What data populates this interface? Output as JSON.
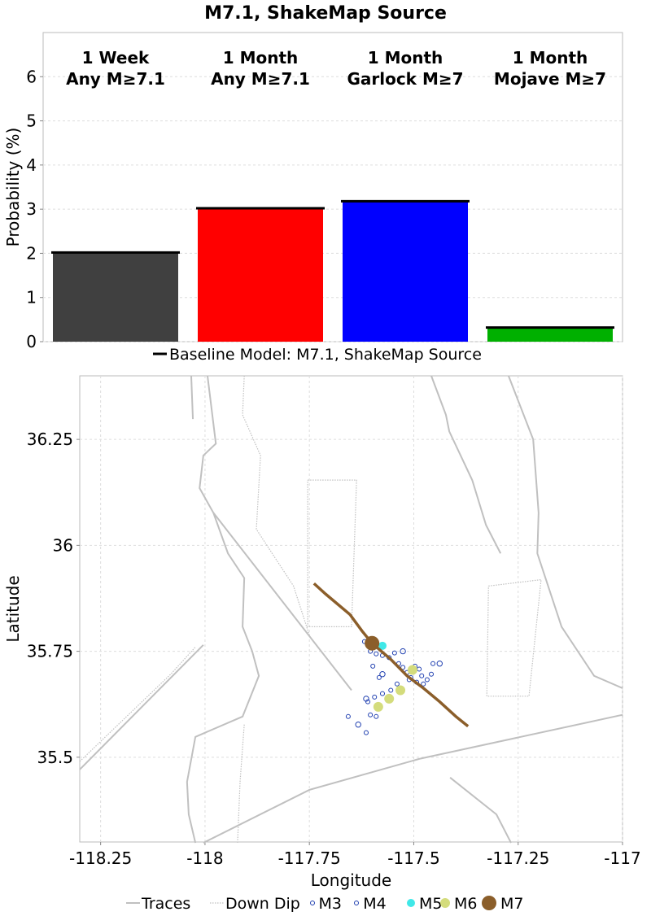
{
  "chart_data": [
    {
      "type": "bar",
      "title": "M7.1, ShakeMap Source",
      "y_label": "Probability (%)",
      "categories": [
        [
          "1 Week",
          "Any M≥7.1"
        ],
        [
          "1 Month",
          "Any M≥7.1"
        ],
        [
          "1 Month",
          "Garlock M≥7"
        ],
        [
          "1 Month",
          "Mojave M≥7"
        ]
      ],
      "values": [
        2.02,
        3.02,
        3.18,
        0.32
      ],
      "colors": [
        "#404040",
        "#ff0000",
        "#0000ff",
        "#00b000"
      ],
      "baseline": {
        "name": "Baseline Model: M7.1, ShakeMap Source",
        "color": "#000000",
        "values": [
          2.02,
          3.02,
          3.18,
          0.32
        ]
      },
      "ylim": [
        0,
        7
      ],
      "yticks": [
        0,
        1,
        2,
        3,
        4,
        5,
        6
      ],
      "grid": true
    },
    {
      "type": "scatter",
      "x_label": "Longitude",
      "y_label": "Latitude",
      "xlim": [
        -118.3,
        -117
      ],
      "ylim": [
        35.3,
        36.4
      ],
      "xticks": [
        -118.25,
        -118,
        -117.75,
        -117.5,
        -117.25,
        -117
      ],
      "yticks": [
        35.5,
        35.75,
        36,
        36.25
      ],
      "grid": true,
      "series": [
        {
          "name": "Traces",
          "color": "#c0c0c0",
          "style": "line",
          "x": [
            -117.994,
            -117.974,
            -118.004,
            -118.013,
            -117.98,
            -117.945,
            -117.906,
            -117.91,
            -117.887,
            -117.871,
            -117.91,
            -118.023,
            -118.043,
            -118.039,
            -118.023,
            null,
            -118.004,
            -117.75,
            -117.487,
            -117.0,
            null,
            -117.98,
            -117.649,
            null,
            -117.458,
            -117.423,
            -117.415,
            -117.36,
            -117.327,
            -117.292,
            null,
            -117.273,
            -117.214,
            -117.201,
            -117.204,
            -117.146,
            -117.068,
            -117.0,
            null,
            -117.413,
            -117.302,
            -117.267,
            null,
            -118.3,
            -118.004,
            null,
            -118.033,
            -118.029
          ],
          "y": [
            36.4,
            36.24,
            36.212,
            36.135,
            36.077,
            35.981,
            35.923,
            35.808,
            35.75,
            35.692,
            35.596,
            35.548,
            35.442,
            35.365,
            35.298,
            null,
            35.298,
            35.423,
            35.496,
            35.6,
            null,
            36.077,
            35.658,
            null,
            36.4,
            36.308,
            36.269,
            36.154,
            36.048,
            35.981,
            null,
            36.4,
            36.25,
            36.077,
            35.981,
            35.808,
            35.692,
            35.663,
            null,
            35.452,
            35.365,
            35.298,
            null,
            35.471,
            35.765,
            null,
            36.4,
            36.298
          ]
        },
        {
          "name": "Down Dip",
          "color": "#c0c0c0",
          "style": "dotted",
          "x": [
            -117.906,
            -117.91,
            -117.867,
            -117.877,
            -117.788,
            -117.75,
            null,
            -117.754,
            -117.637,
            -117.649,
            -117.754,
            -117.754,
            null,
            -117.321,
            -117.195,
            -117.224,
            -117.325,
            -117.321,
            null,
            -118.3,
            -118.082,
            -118.023,
            null,
            -117.906,
            -117.916,
            -117.922
          ],
          "y": [
            36.4,
            36.308,
            36.212,
            36.038,
            35.904,
            35.788,
            null,
            36.154,
            36.154,
            35.808,
            35.808,
            36.154,
            null,
            35.904,
            35.919,
            35.644,
            35.644,
            35.904,
            null,
            35.49,
            35.696,
            35.76,
            null,
            35.577,
            35.442,
            35.298
          ]
        },
        {
          "name": "M3",
          "color": "#1f3fb0",
          "style": "open",
          "x": [
            -117.618,
            -117.604,
            -117.59,
            -117.575,
            -117.559,
            -117.546,
            -117.536,
            -117.526,
            -117.516,
            -117.507,
            -117.497,
            -117.487,
            -117.481,
            -117.493,
            -117.477,
            -117.468,
            -117.458,
            -117.54,
            -117.555,
            -117.575,
            -117.594,
            -117.61,
            -117.604,
            -117.59,
            -117.657,
            -117.614,
            -117.454,
            -117.598,
            -117.583,
            -117.511
          ],
          "y": [
            35.773,
            35.75,
            35.744,
            35.74,
            35.735,
            35.746,
            35.721,
            35.712,
            35.7,
            35.688,
            35.715,
            35.708,
            35.692,
            35.677,
            35.673,
            35.683,
            35.696,
            35.673,
            35.658,
            35.65,
            35.642,
            35.631,
            35.6,
            35.596,
            35.596,
            35.558,
            35.721,
            35.715,
            35.688,
            35.683
          ]
        },
        {
          "name": "M4",
          "color": "#1f3fb0",
          "style": "open",
          "x": [
            -117.614,
            -117.633,
            -117.438,
            -117.575,
            -117.526
          ],
          "y": [
            35.638,
            35.577,
            35.721,
            35.696,
            35.75
          ]
        },
        {
          "name": "M5",
          "color": "#40e8e8",
          "style": "filled",
          "x": [
            -117.575
          ],
          "y": [
            35.763
          ]
        },
        {
          "name": "M6",
          "color": "#d4dc7c",
          "style": "filled",
          "x": [
            -117.503,
            -117.532,
            -117.559,
            -117.585
          ],
          "y": [
            35.706,
            35.658,
            35.638,
            35.619
          ]
        },
        {
          "name": "M7",
          "color": "#8b5e2a",
          "style": "filled",
          "x": [
            -117.6
          ],
          "y": [
            35.769
          ]
        }
      ],
      "rupture": {
        "color": "#8b5e2a",
        "x": [
          -117.739,
          -117.711,
          -117.653,
          -117.624,
          -117.6,
          -117.555,
          -117.516,
          -117.477,
          -117.438,
          -117.399,
          -117.37
        ],
        "y": [
          35.91,
          35.885,
          35.837,
          35.798,
          35.769,
          35.731,
          35.692,
          35.663,
          35.631,
          35.596,
          35.573
        ]
      }
    }
  ]
}
